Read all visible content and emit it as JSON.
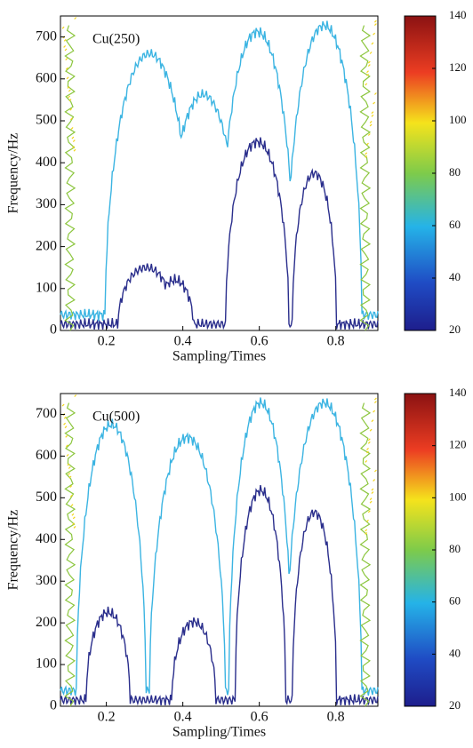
{
  "chart_data": [
    {
      "type": "contour",
      "title": "Cu(250)",
      "xlabel": "Sampling/Times",
      "ylabel": "Frequency/Hz",
      "xlim": [
        0.08,
        0.91
      ],
      "xticks": [
        0.2,
        0.4,
        0.6,
        0.8
      ],
      "ylim": [
        0,
        750
      ],
      "yticks": [
        0,
        100,
        200,
        300,
        400,
        500,
        600,
        700
      ],
      "clim": [
        20,
        140
      ],
      "cticks": [
        20,
        40,
        60,
        80,
        100,
        120,
        140
      ],
      "levels": [
        {
          "value": 40,
          "color": "#2a2e8c"
        },
        {
          "value": 60,
          "color": "#3bb4e2"
        },
        {
          "value": 80,
          "color": "#8cc63e"
        },
        {
          "value": 100,
          "color": "#f2d51a"
        }
      ]
    },
    {
      "type": "contour",
      "title": "Cu(500)",
      "xlabel": "Sampling/Times",
      "ylabel": "Frequency/Hz",
      "xlim": [
        0.08,
        0.91
      ],
      "xticks": [
        0.2,
        0.4,
        0.6,
        0.8
      ],
      "ylim": [
        0,
        750
      ],
      "yticks": [
        0,
        100,
        200,
        300,
        400,
        500,
        600,
        700
      ],
      "clim": [
        20,
        140
      ],
      "cticks": [
        20,
        40,
        60,
        80,
        100,
        120,
        140
      ],
      "levels": [
        {
          "value": 40,
          "color": "#2a2e8c"
        },
        {
          "value": 60,
          "color": "#3bb4e2"
        },
        {
          "value": 80,
          "color": "#8cc63e"
        },
        {
          "value": 100,
          "color": "#f2d51a"
        }
      ]
    }
  ]
}
